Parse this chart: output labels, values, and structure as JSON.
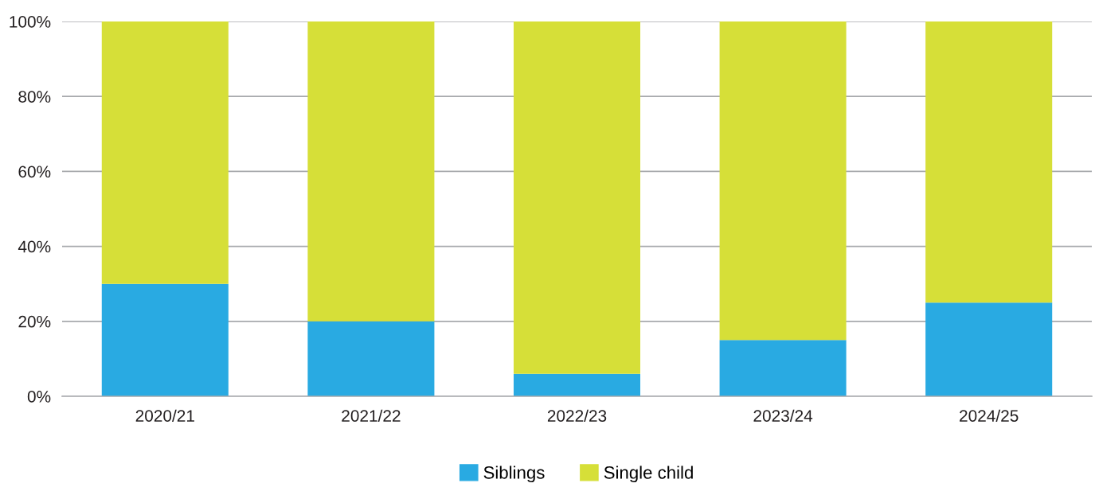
{
  "chart_data": {
    "type": "bar",
    "stacked": true,
    "categories": [
      "2020/21",
      "2021/22",
      "2022/23",
      "2023/24",
      "2024/25"
    ],
    "series": [
      {
        "name": "Siblings",
        "color": "#29aae2",
        "values": [
          30,
          20,
          6,
          15,
          25
        ]
      },
      {
        "name": "Single child",
        "color": "#d6df38",
        "values": [
          70,
          80,
          94,
          85,
          75
        ]
      }
    ],
    "ylim": [
      0,
      100
    ],
    "yticks": [
      {
        "value": 0,
        "label": "0%"
      },
      {
        "value": 20,
        "label": "20%"
      },
      {
        "value": 40,
        "label": "40%"
      },
      {
        "value": 60,
        "label": "60%"
      },
      {
        "value": 80,
        "label": "80%"
      },
      {
        "value": 100,
        "label": "100%"
      }
    ],
    "grid": "y",
    "legend": "bottom"
  }
}
